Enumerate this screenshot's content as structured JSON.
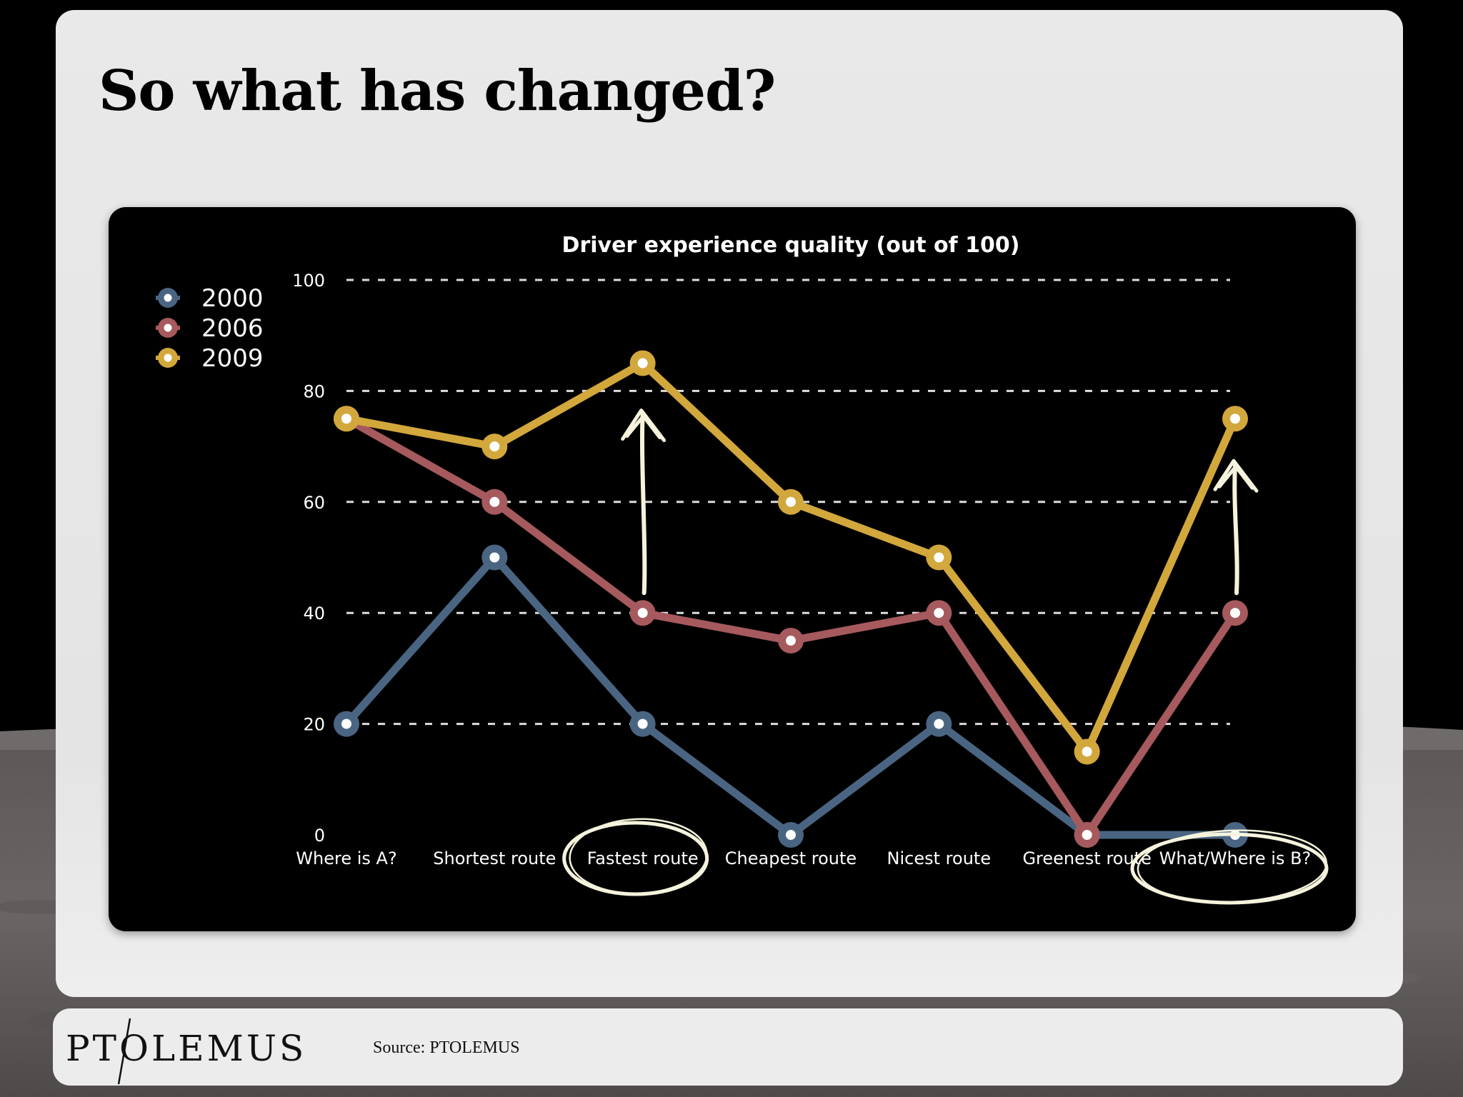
{
  "slide": {
    "title": "So what has changed?"
  },
  "footer": {
    "logo": "PTOLEMUS",
    "source": "Source: PTOLEMUS"
  },
  "colors": {
    "series_2000": "#4a6582",
    "series_2006": "#a65a5e",
    "series_2009": "#d2a73c",
    "annotation": "#f5f3dc",
    "grid": "#dddddd",
    "text": "#ffffff"
  },
  "icons": {
    "arrow-up": "hand-drawn-up-arrow-icon",
    "circle": "hand-drawn-ellipse-icon"
  },
  "chart_data": {
    "type": "line",
    "title": "Driver experience quality (out of 100)",
    "categories": [
      "Where is A?",
      "Shortest route",
      "Fastest route",
      "Cheapest route",
      "Nicest route",
      "Greenest route",
      "What/Where is B?"
    ],
    "series": [
      {
        "name": "2000",
        "values": [
          20,
          50,
          20,
          0,
          20,
          0,
          0
        ]
      },
      {
        "name": "2006",
        "values": [
          75,
          60,
          40,
          35,
          40,
          0,
          40
        ]
      },
      {
        "name": "2009",
        "values": [
          75,
          70,
          85,
          60,
          50,
          15,
          75
        ]
      }
    ],
    "yticks": [
      "0",
      "20",
      "40",
      "60",
      "80",
      "100"
    ],
    "ylim": [
      0,
      100
    ],
    "grid": true,
    "legend": "top-left",
    "annotations": {
      "arrows_at_categories": [
        "Fastest route",
        "What/Where is B?"
      ],
      "circled_categories": [
        "Fastest route",
        "What/Where is B?"
      ]
    }
  }
}
